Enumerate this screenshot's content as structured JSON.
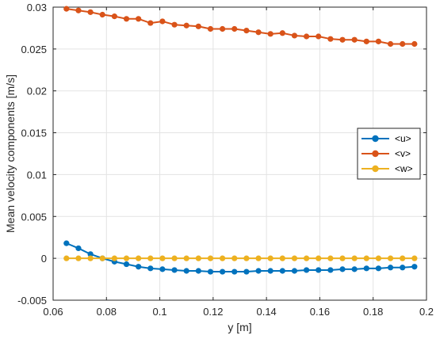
{
  "chart_data": {
    "type": "line",
    "xlabel": "y [m]",
    "ylabel": "Mean velocity components [m/s]",
    "xlim": [
      0.06,
      0.2
    ],
    "ylim": [
      -0.005,
      0.03
    ],
    "xticks": [
      "0.06",
      "0.08",
      "0.1",
      "0.12",
      "0.14",
      "0.16",
      "0.18",
      "0.2"
    ],
    "xtick_values": [
      0.06,
      0.08,
      0.1,
      0.12,
      0.14,
      0.16,
      0.18,
      0.2
    ],
    "yticks": [
      "-0.005",
      "0",
      "0.005",
      "0.01",
      "0.015",
      "0.02",
      "0.025",
      "0.03"
    ],
    "ytick_values": [
      -0.005,
      0,
      0.005,
      0.01,
      0.015,
      0.02,
      0.025,
      0.03
    ],
    "grid": true,
    "legend_position": "right",
    "x": [
      0.065,
      0.0695,
      0.074,
      0.0785,
      0.083,
      0.0875,
      0.092,
      0.0965,
      0.101,
      0.1055,
      0.11,
      0.1145,
      0.119,
      0.1235,
      0.128,
      0.1325,
      0.137,
      0.1415,
      0.146,
      0.1505,
      0.155,
      0.1595,
      0.164,
      0.1685,
      0.173,
      0.1775,
      0.182,
      0.1865,
      0.191,
      0.1955
    ],
    "series": [
      {
        "name": "<u>",
        "color": "#0072BD",
        "values": [
          0.0018,
          0.0012,
          0.0005,
          0.0,
          -0.0004,
          -0.0007,
          -0.001,
          -0.0012,
          -0.0013,
          -0.0014,
          -0.0015,
          -0.0015,
          -0.0016,
          -0.0016,
          -0.0016,
          -0.0016,
          -0.0015,
          -0.0015,
          -0.0015,
          -0.0015,
          -0.0014,
          -0.0014,
          -0.0014,
          -0.0013,
          -0.0013,
          -0.0012,
          -0.0012,
          -0.0011,
          -0.0011,
          -0.001
        ]
      },
      {
        "name": "<v>",
        "color": "#D95319",
        "values": [
          0.0298,
          0.0296,
          0.0294,
          0.0291,
          0.0289,
          0.0286,
          0.0286,
          0.0281,
          0.0283,
          0.0279,
          0.0278,
          0.0277,
          0.0274,
          0.0274,
          0.0274,
          0.0272,
          0.027,
          0.0268,
          0.0269,
          0.0266,
          0.0265,
          0.0265,
          0.0262,
          0.0261,
          0.0261,
          0.0259,
          0.0259,
          0.0256,
          0.0256,
          0.0256
        ]
      },
      {
        "name": "<w>",
        "color": "#EDB120",
        "values": [
          0,
          0,
          0,
          0,
          0,
          0,
          0,
          0,
          0,
          0,
          0,
          0,
          0,
          0,
          0,
          0,
          0,
          0,
          0,
          0,
          0,
          0,
          0,
          0,
          0,
          0,
          0,
          0,
          0,
          0
        ]
      }
    ]
  }
}
